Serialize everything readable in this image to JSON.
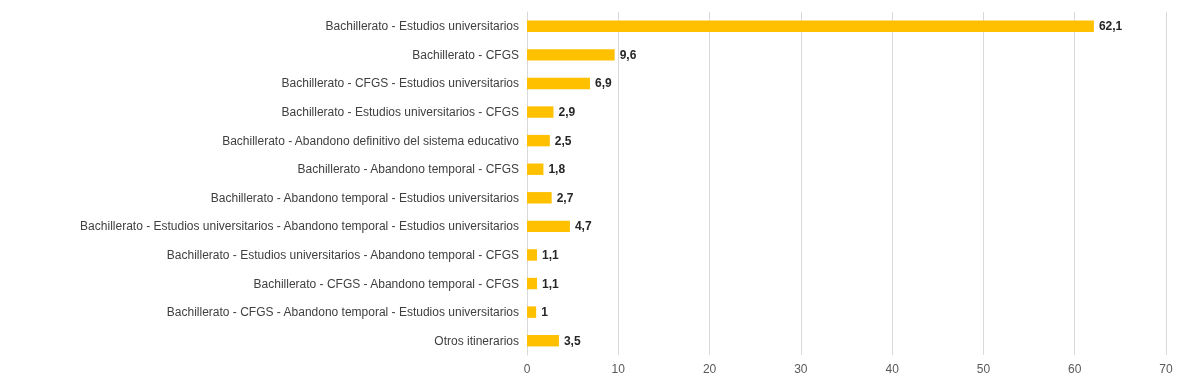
{
  "chart_data": {
    "type": "bar",
    "orientation": "horizontal",
    "categories": [
      "Bachillerato - Estudios universitarios",
      "Bachillerato - CFGS",
      "Bachillerato - CFGS - Estudios universitarios",
      "Bachillerato - Estudios universitarios - CFGS",
      "Bachillerato - Abandono definitivo del sistema educativo",
      "Bachillerato - Abandono temporal - CFGS",
      "Bachillerato - Abandono temporal - Estudios universitarios",
      "Bachillerato - Estudios universitarios - Abandono temporal - Estudios universitarios",
      "Bachillerato - Estudios universitarios - Abandono temporal - CFGS",
      "Bachillerato - CFGS - Abandono temporal - CFGS",
      "Bachillerato - CFGS - Abandono temporal - Estudios universitarios",
      "Otros itinerarios"
    ],
    "values": [
      62.1,
      9.6,
      6.9,
      2.9,
      2.5,
      1.8,
      2.7,
      4.7,
      1.1,
      1.1,
      1,
      3.5
    ],
    "value_labels": [
      "62,1",
      "9,6",
      "6,9",
      "2,9",
      "2,5",
      "1,8",
      "2,7",
      "4,7",
      "1,1",
      "1,1",
      "1",
      "3,5"
    ],
    "color": "#ffc000",
    "xlim": [
      0,
      70
    ],
    "xticks": [
      0,
      10,
      20,
      30,
      40,
      50,
      60,
      70
    ],
    "grid": "x"
  }
}
